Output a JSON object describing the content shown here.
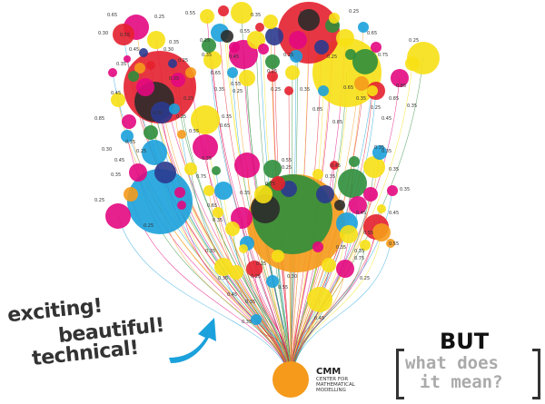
{
  "colors": {
    "red": "#e4202f",
    "yellow": "#f7e015",
    "blue": "#1ba1dc",
    "magenta": "#e3087f",
    "green": "#2f8e3c",
    "orange": "#f59a1b",
    "navy": "#2b3a8f",
    "dark": "#2b2b2b",
    "teal": "#1d5b3c"
  },
  "slogans": [
    "exciting!",
    "beautiful!",
    "technical!"
  ],
  "question": {
    "but": "BUT",
    "line1": "what does",
    "line2": "it mean?"
  },
  "organization": {
    "short_name": "CMM",
    "full_name": "CENTER FOR MATHEMATICAL MODELLING"
  },
  "node_labels": [
    "0.65",
    "0.25",
    "0.30",
    "0.35",
    "0.35",
    "0.25",
    "0.35",
    "0.45",
    "0.85",
    "0.35",
    "0.45",
    "0.25",
    "0.35",
    "0.75",
    "0.55",
    "0.35",
    "0.25",
    "0.25",
    "0.65",
    "0.95",
    "0.25",
    "0.65",
    "0.75",
    "0.25",
    "0.85",
    "0.85",
    "0.85",
    "0.35",
    "0.25",
    "0.45",
    "0.35",
    "0.35",
    "0.35",
    "0.35",
    "0.45",
    "0.55",
    "0.75",
    "0.25",
    "0.45",
    "0.55",
    "0.25",
    "0.35",
    "0.35",
    "0.35",
    "0.65",
    "0.35",
    "0.75",
    "0.55",
    "0.25",
    "0.45",
    "0.35",
    "0.45",
    "0.55",
    "0.35",
    "0.35",
    "0.25",
    "0.30",
    "0.35",
    "0.45",
    "0.35",
    "0.55",
    "0.25",
    "0.30",
    "0.35",
    "0.25",
    "0.30",
    "0.35",
    "0.55",
    "0.35",
    "0.55",
    "0.25",
    "0.35",
    "0.65",
    "0.25",
    "0.25",
    "0.65",
    "0.35",
    "0.25",
    "0.85",
    "0.35",
    "0.25",
    "0.45",
    "0.25",
    "0.30",
    "0.45",
    "0.55"
  ]
}
